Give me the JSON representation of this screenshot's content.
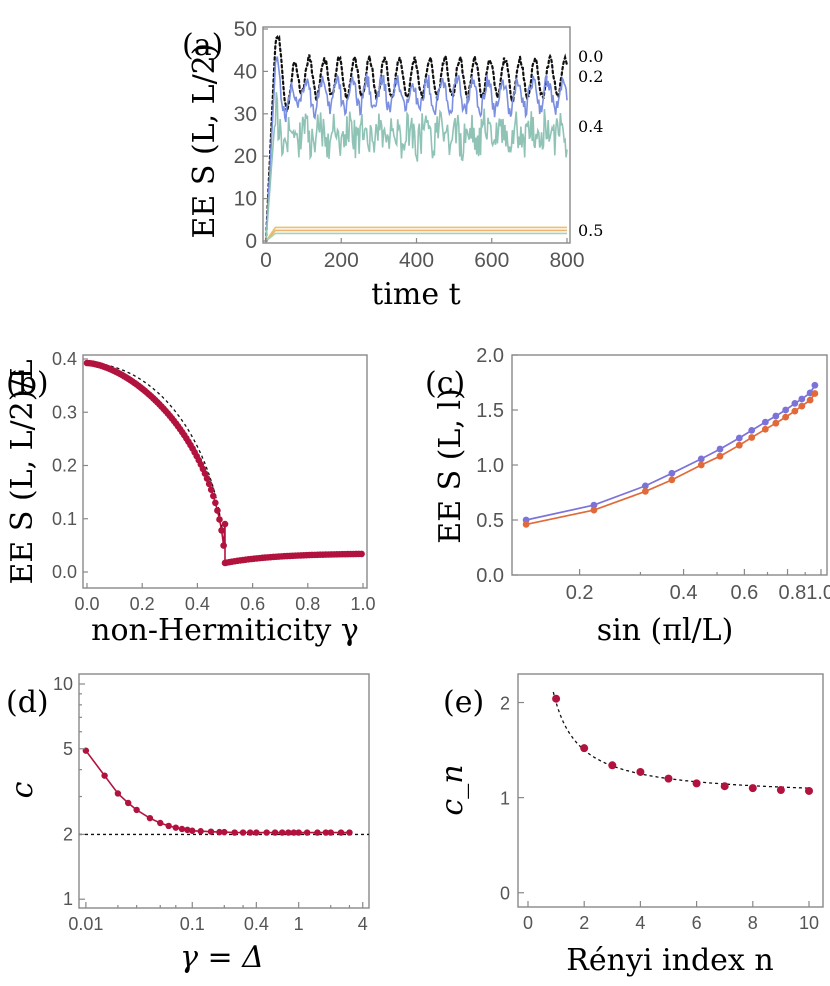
{
  "colors": {
    "black": "#111111",
    "blue": "#7b8fe0",
    "teal": "#8fc3b5",
    "crimson": "#b2123e",
    "orange": "#e06a3a",
    "purple": "#7b73d8",
    "yellow": "#e8c36a",
    "amber": "#f0b070",
    "green": "#a6d4b0",
    "frame": "#888888"
  },
  "chart_data": [
    {
      "id": "a",
      "panel_label": "(a)",
      "type": "line",
      "xlabel": "time t",
      "ylabel": "EE S (L, L/2)",
      "xlim": [
        0,
        800
      ],
      "ylim": [
        0,
        50
      ],
      "xticks": [
        "0",
        "200",
        "400",
        "600",
        "800"
      ],
      "yticks": [
        "0",
        "10",
        "20",
        "30",
        "40",
        "50"
      ],
      "series": [
        {
          "name": "0.0",
          "style": "dotted",
          "color": "#111111",
          "peak": 47,
          "mean": 38.5,
          "amp": 4.5,
          "period": 40,
          "noise": 0.8
        },
        {
          "name": "0.2",
          "style": "solid",
          "color": "#7b8fe0",
          "peak": 41,
          "mean": 34.5,
          "amp": 3.5,
          "period": 40,
          "noise": 2.0
        },
        {
          "name": "0.4",
          "style": "solid",
          "color": "#8fc3b5",
          "peak": 30,
          "mean": 25,
          "amp": 2.0,
          "period": 40,
          "noise": 4.5
        },
        {
          "name": "0.5",
          "style": "solid",
          "color": "#e8c36a",
          "peak": 3.2,
          "mean": 3.2,
          "amp": 0,
          "period": 40,
          "noise": 0
        },
        {
          "name": "",
          "style": "solid",
          "color": "#f0b070",
          "peak": 2.5,
          "mean": 2.5,
          "amp": 0,
          "period": 40,
          "noise": 0
        },
        {
          "name": "",
          "style": "solid",
          "color": "#a6d4b0",
          "peak": 1.8,
          "mean": 1.8,
          "amp": 0,
          "period": 40,
          "noise": 0
        }
      ],
      "curve_labels": [
        "0.0",
        "0.2",
        "0.4",
        "0.5"
      ]
    },
    {
      "id": "b",
      "panel_label": "(b)",
      "type": "scatter",
      "xlabel": "non-Hermiticity γ",
      "ylabel": "EE S (L, L/2)/L",
      "xlim": [
        0,
        1.0
      ],
      "ylim": [
        0,
        0.4
      ],
      "xticks": [
        "0.0",
        "0.2",
        "0.4",
        "0.6",
        "0.8",
        "1.0"
      ],
      "yticks": [
        "0.0",
        "0.1",
        "0.2",
        "0.3",
        "0.4"
      ],
      "critical_point": 0.5,
      "value_at_zero": 0.3925,
      "drop_to": 0.017,
      "value_at_one": 0.034,
      "note": "points: 0.3925*sqrt(1-(2γ)^p) for γ<0.5 and a slow rise after the jump; dashed curve: 0.3925*sqrt(1-(2γ)^2)"
    },
    {
      "id": "c",
      "panel_label": "(c)",
      "type": "line",
      "xlabel": "sin (πl/L)",
      "ylabel": "EE S (L, l)",
      "xscale": "log",
      "xlim": [
        0.13,
        1.0
      ],
      "ylim": [
        0,
        2.0
      ],
      "xticks": [
        "0.2",
        "0.4",
        "0.6",
        "0.81.0"
      ],
      "yticks": [
        "0.0",
        "0.5",
        "1.0",
        "1.5",
        "2.0"
      ],
      "x": [
        0.14,
        0.22,
        0.31,
        0.37,
        0.45,
        0.51,
        0.58,
        0.63,
        0.69,
        0.74,
        0.79,
        0.84,
        0.88,
        0.93,
        0.96
      ],
      "series": [
        {
          "name": "upper",
          "color": "#7b73d8",
          "values": [
            0.5,
            0.635,
            0.81,
            0.925,
            1.055,
            1.145,
            1.245,
            1.315,
            1.39,
            1.445,
            1.5,
            1.56,
            1.6,
            1.655,
            1.725
          ]
        },
        {
          "name": "lower",
          "color": "#e06a3a",
          "values": [
            0.46,
            0.59,
            0.76,
            0.865,
            1.0,
            1.08,
            1.18,
            1.25,
            1.325,
            1.38,
            1.435,
            1.49,
            1.535,
            1.59,
            1.65
          ]
        }
      ]
    },
    {
      "id": "d",
      "panel_label": "(d)",
      "type": "line",
      "xlabel": "γ = Δ",
      "ylabel": "c",
      "xscale": "log",
      "yscale": "log",
      "xlim": [
        0.009,
        4.2
      ],
      "ylim": [
        0.95,
        10
      ],
      "xticks": [
        "0.01",
        "0.1",
        "0.4",
        "1",
        "4"
      ],
      "yticks": [
        "1",
        "2",
        "5",
        "10"
      ],
      "reference_line": 2,
      "x": [
        0.01,
        0.015,
        0.02,
        0.025,
        0.03,
        0.04,
        0.05,
        0.06,
        0.07,
        0.08,
        0.09,
        0.1,
        0.12,
        0.15,
        0.18,
        0.2,
        0.25,
        0.3,
        0.35,
        0.4,
        0.5,
        0.6,
        0.7,
        0.8,
        0.9,
        1.0,
        1.2,
        1.5,
        1.8,
        2.0,
        2.5,
        3.0
      ],
      "values": [
        4.9,
        3.75,
        3.1,
        2.8,
        2.6,
        2.38,
        2.26,
        2.19,
        2.15,
        2.12,
        2.1,
        2.08,
        2.07,
        2.06,
        2.05,
        2.05,
        2.04,
        2.04,
        2.04,
        2.04,
        2.04,
        2.04,
        2.04,
        2.04,
        2.04,
        2.04,
        2.04,
        2.04,
        2.04,
        2.04,
        2.04,
        2.04
      ]
    },
    {
      "id": "e",
      "panel_label": "(e)",
      "type": "scatter",
      "xlabel": "Rényi index n",
      "ylabel": "c_n",
      "xlim": [
        0,
        10
      ],
      "ylim": [
        -0.15,
        2.3
      ],
      "xticks": [
        "0",
        "2",
        "4",
        "6",
        "8",
        "10"
      ],
      "yticks": [
        "0",
        "1",
        "2"
      ],
      "x": [
        1,
        2,
        3,
        4,
        5,
        6,
        7,
        8,
        9,
        10
      ],
      "values": [
        2.04,
        1.52,
        1.34,
        1.27,
        1.2,
        1.15,
        1.12,
        1.1,
        1.08,
        1.07
      ],
      "fit_curve": "1 + 1/n"
    }
  ]
}
